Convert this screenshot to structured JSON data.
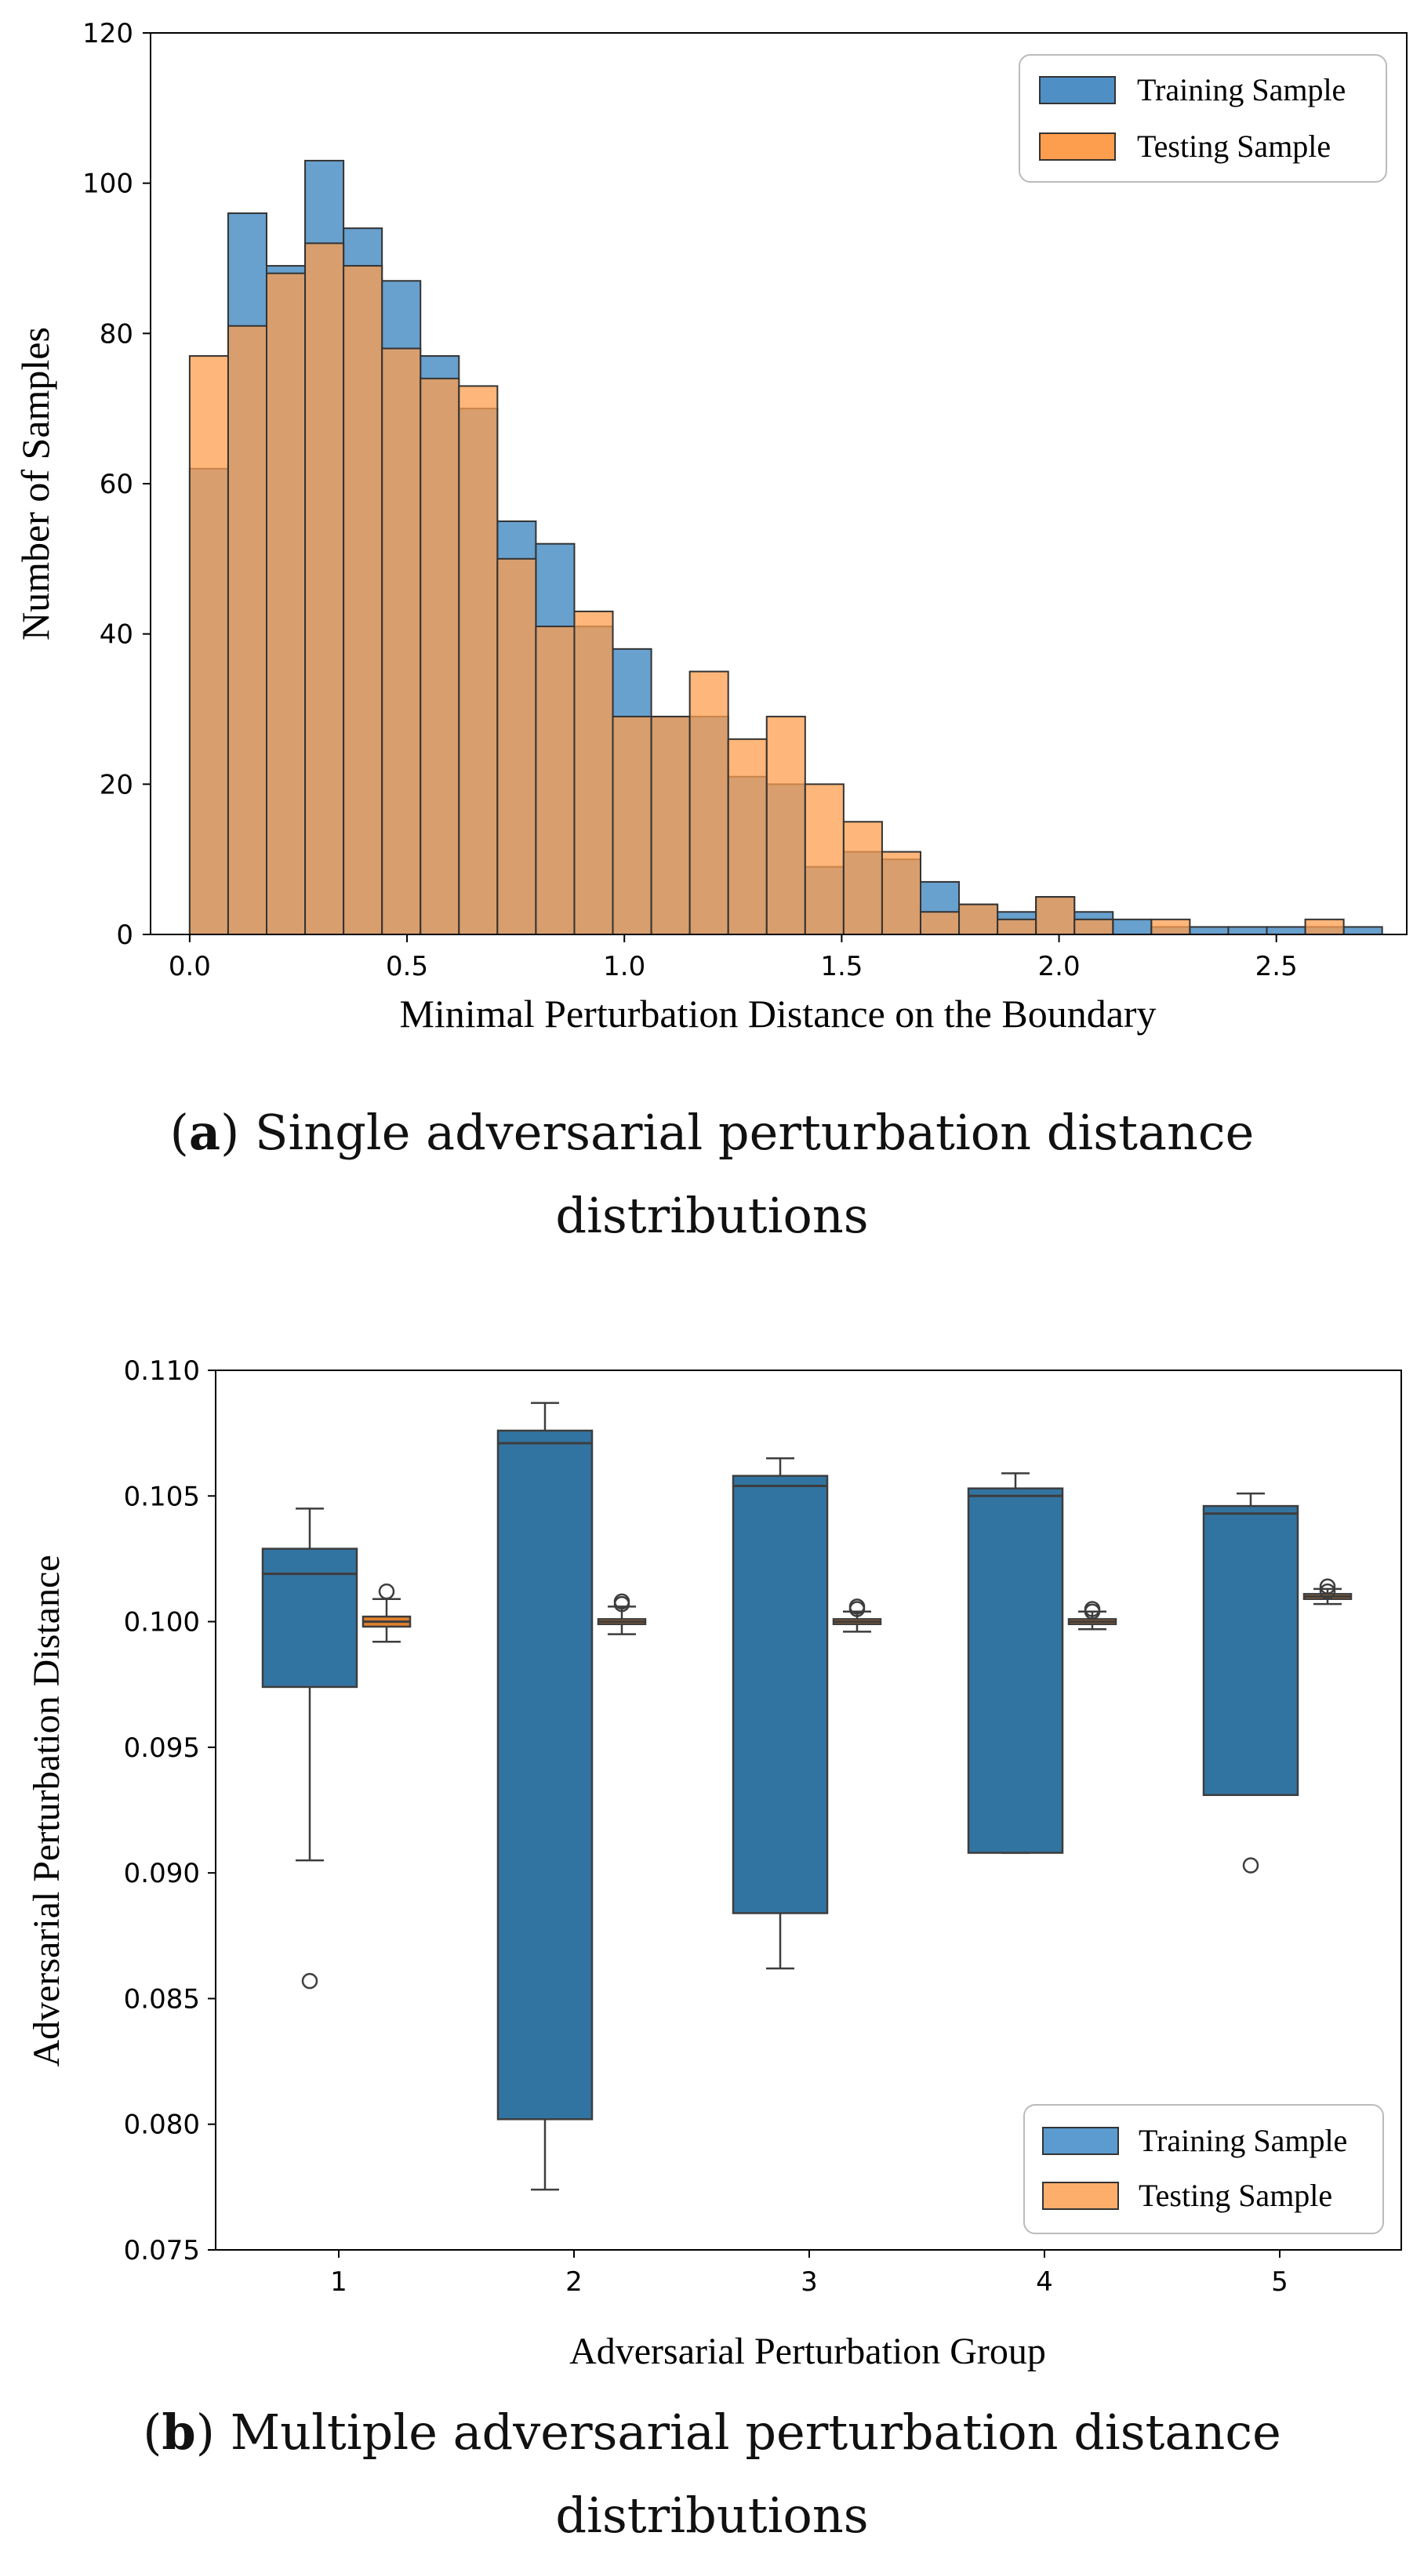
{
  "chart_data": [
    {
      "type": "histogram",
      "xlabel": "Minimal Perturbation Distance on the Boundary",
      "ylabel": "Number of Samples",
      "xlim": [
        -0.09,
        2.8
      ],
      "ylim": [
        0,
        120
      ],
      "xticks": [
        "0.0",
        "0.5",
        "1.0",
        "1.5",
        "2.0",
        "2.5"
      ],
      "xtick_values": [
        0.0,
        0.5,
        1.0,
        1.5,
        2.0,
        2.5
      ],
      "yticks": [
        "0",
        "20",
        "40",
        "60",
        "80",
        "100",
        "120"
      ],
      "ytick_values": [
        0,
        20,
        40,
        60,
        80,
        100,
        120
      ],
      "legend_position": "top-right",
      "series": [
        {
          "name": "Training Sample",
          "color": "#4e8fc6",
          "bin_start": 0.0,
          "bin_width": 0.0885,
          "values": [
            62,
            96,
            89,
            103,
            94,
            87,
            77,
            70,
            55,
            52,
            41,
            38,
            29,
            29,
            21,
            20,
            9,
            11,
            10,
            7,
            4,
            3,
            5,
            3,
            2,
            1,
            1,
            1,
            1,
            1,
            1
          ]
        },
        {
          "name": "Testing Sample",
          "color": "#fd9e4e",
          "bin_start": 0.0,
          "bin_width": 0.0885,
          "values": [
            77,
            81,
            88,
            92,
            89,
            78,
            74,
            73,
            50,
            41,
            43,
            29,
            29,
            35,
            26,
            29,
            20,
            15,
            11,
            3,
            4,
            2,
            5,
            2,
            0,
            2,
            0,
            0,
            0,
            2,
            0
          ]
        }
      ]
    },
    {
      "type": "box",
      "xlabel": "Adversarial Perturbation Group",
      "ylabel": "Adversarial Perturbation Distance",
      "ylim": [
        0.075,
        0.11
      ],
      "yticks": [
        "0.075",
        "0.080",
        "0.085",
        "0.090",
        "0.095",
        "0.100",
        "0.105",
        "0.110"
      ],
      "ytick_values": [
        0.075,
        0.08,
        0.085,
        0.09,
        0.095,
        0.1,
        0.105,
        0.11
      ],
      "categories": [
        "1",
        "2",
        "3",
        "4",
        "5"
      ],
      "legend_position": "bottom-right",
      "series": [
        {
          "name": "Training Sample",
          "color": "#3274a1",
          "legend_color": "#5b9bd0",
          "boxes": [
            {
              "whislo": 0.0905,
              "q1": 0.0974,
              "med": 0.1019,
              "q3": 0.1029,
              "whishi": 0.1045,
              "fliers": [
                0.0857
              ]
            },
            {
              "whislo": 0.0774,
              "q1": 0.0802,
              "med": 0.1071,
              "q3": 0.1076,
              "whishi": 0.1087,
              "fliers": []
            },
            {
              "whislo": 0.0862,
              "q1": 0.0884,
              "med": 0.1054,
              "q3": 0.1058,
              "whishi": 0.1065,
              "fliers": []
            },
            {
              "whislo": 0.0908,
              "q1": 0.0908,
              "med": 0.105,
              "q3": 0.1053,
              "whishi": 0.1059,
              "fliers": []
            },
            {
              "whislo": 0.0931,
              "q1": 0.0931,
              "med": 0.1043,
              "q3": 0.1046,
              "whishi": 0.1051,
              "fliers": [
                0.0903
              ]
            }
          ]
        },
        {
          "name": "Testing Sample",
          "color": "#e1812c",
          "legend_color": "#fdae6b",
          "boxes": [
            {
              "whislo": 0.0992,
              "q1": 0.0998,
              "med": 0.1,
              "q3": 0.1002,
              "whishi": 0.1009,
              "fliers": [
                0.1012
              ]
            },
            {
              "whislo": 0.0995,
              "q1": 0.0999,
              "med": 0.1,
              "q3": 0.1001,
              "whishi": 0.1006,
              "fliers": [
                0.1008,
                0.1007
              ]
            },
            {
              "whislo": 0.0996,
              "q1": 0.0999,
              "med": 0.1,
              "q3": 0.1001,
              "whishi": 0.1004,
              "fliers": [
                0.1006,
                0.1005
              ]
            },
            {
              "whislo": 0.0997,
              "q1": 0.0999,
              "med": 0.1,
              "q3": 0.1001,
              "whishi": 0.1004,
              "fliers": [
                0.1005,
                0.1004
              ]
            },
            {
              "whislo": 0.1007,
              "q1": 0.1009,
              "med": 0.101,
              "q3": 0.1011,
              "whishi": 0.1013,
              "fliers": [
                0.1014,
                0.1012
              ]
            }
          ]
        }
      ]
    }
  ],
  "captions": {
    "a_letter": "a",
    "a_line1": "Single adversarial perturbation distance",
    "a_line2": "distributions",
    "b_letter": "b",
    "b_line1": "Multiple adversarial perturbation distance",
    "b_line2": "distributions"
  }
}
